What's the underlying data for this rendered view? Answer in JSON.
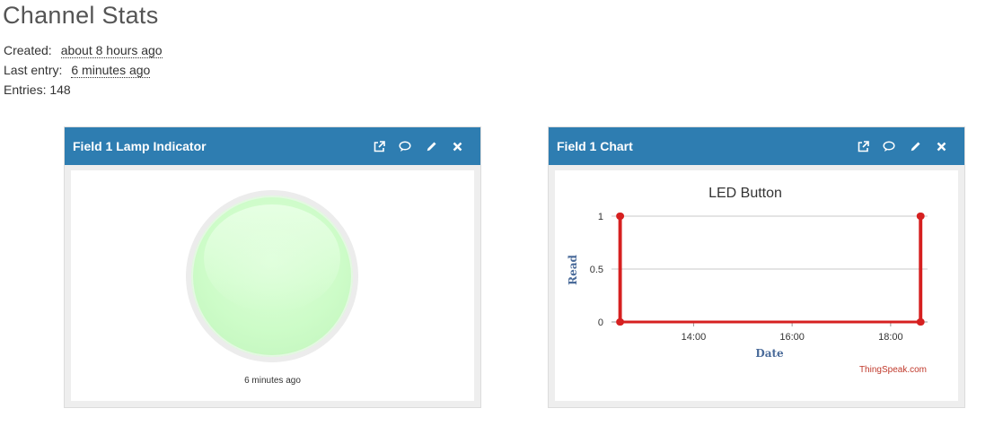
{
  "page": {
    "title": "Channel Stats"
  },
  "stats": {
    "created_label": "Created:",
    "created_value": "about 8 hours ago",
    "last_entry_label": "Last entry:",
    "last_entry_value": "6 minutes ago",
    "entries_text": "Entries: 148"
  },
  "colors": {
    "header": "#2e7db1",
    "series": "#d62020",
    "lamp": "#cdfcc8",
    "axis_label": "#4a6b9a"
  },
  "widgets": [
    {
      "title": "Field 1 Lamp Indicator",
      "icons": [
        "external-link-icon",
        "comment-icon",
        "pencil-icon",
        "close-icon"
      ],
      "lamp_caption": "6 minutes ago",
      "lamp_state": "on"
    },
    {
      "title": "Field 1 Chart",
      "icons": [
        "external-link-icon",
        "comment-icon",
        "pencil-icon",
        "close-icon"
      ],
      "credit": "ThingSpeak.com"
    }
  ],
  "chart_data": {
    "type": "line",
    "title": "LED Button",
    "xlabel": "Date",
    "ylabel": "Read",
    "x_ticks": [
      "14:00",
      "16:00",
      "18:00"
    ],
    "y_ticks": [
      "0",
      "0.5",
      "1"
    ],
    "ylim": [
      0,
      1
    ],
    "xlim": [
      "12:20",
      "18:45"
    ],
    "grid": true,
    "legend": "none",
    "series": [
      {
        "x": [
          "12:30",
          "12:30",
          "12:31",
          "12:31",
          "18:36",
          "18:36",
          "18:37",
          "18:37"
        ],
        "values": [
          1,
          0,
          1,
          0,
          0,
          1,
          0,
          1
        ]
      }
    ]
  }
}
